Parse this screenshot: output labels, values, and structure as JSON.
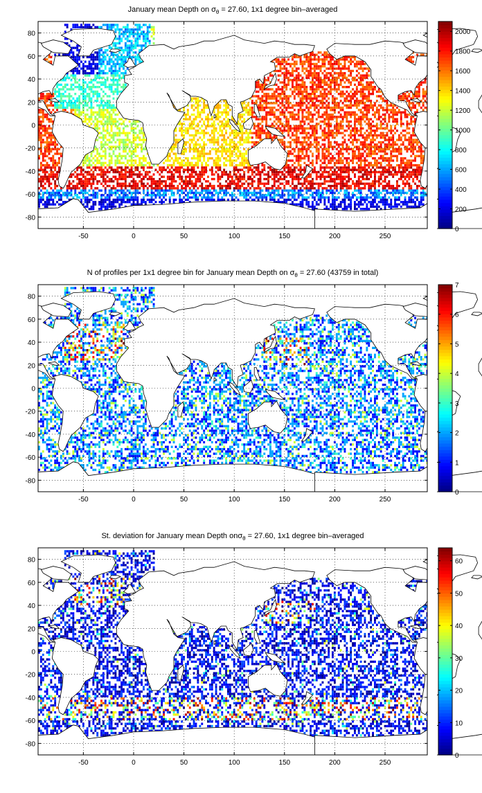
{
  "chart_data": [
    {
      "type": "heatmap",
      "title": "January mean Depth on σθ = 27.60, 1x1 degree bin–averaged",
      "title_parts": [
        "January mean Depth on σ",
        "θ",
        " = 27.60, 1x1 degree bin–averaged"
      ],
      "xlabel": "",
      "ylabel": "",
      "xlim": [
        -95,
        292
      ],
      "ylim": [
        -90,
        90
      ],
      "xticks": [
        -50,
        0,
        50,
        100,
        150,
        200,
        250
      ],
      "yticks": [
        80,
        60,
        40,
        20,
        0,
        -20,
        -40,
        -60,
        -80
      ],
      "grid": true,
      "colorbar": {
        "min": 0,
        "max": 2100,
        "ticks": [
          0,
          200,
          400,
          600,
          800,
          1000,
          1200,
          1400,
          1600,
          1800,
          2000
        ]
      },
      "colormap": "jet",
      "bands": [
        {
          "lat_range": [
            -75,
            -62
          ],
          "value": 120
        },
        {
          "lat_range": [
            -62,
            -55
          ],
          "value": 500
        },
        {
          "lat_range": [
            -55,
            -35
          ],
          "value": 1850
        },
        {
          "lat_range": [
            -35,
            -15
          ],
          "value": 1650
        },
        {
          "lat_range": [
            -15,
            15
          ],
          "value": 1550
        },
        {
          "lat_range": [
            15,
            45
          ],
          "value": 1600
        },
        {
          "lat_range": [
            45,
            60
          ],
          "value": 1750
        }
      ],
      "regional_values": [
        {
          "region": "Labrador / Irminger Sea",
          "value": 150
        },
        {
          "region": "North Atlantic subpolar",
          "value": 550
        },
        {
          "region": "North Atlantic subtropical",
          "value": 900
        },
        {
          "region": "Equatorial Atlantic",
          "value": 1150
        },
        {
          "region": "South Atlantic",
          "value": 1250
        },
        {
          "region": "Indian Ocean",
          "value": 1350
        },
        {
          "region": "Pacific",
          "value": 1700
        }
      ]
    },
    {
      "type": "heatmap",
      "title": "N of profiles per 1x1 degree bin for January mean Depth on σθ = 27.60 (43759 in total)",
      "title_parts": [
        "N of profiles per 1x1 degree bin for January mean Depth on σ",
        "θ",
        " = 27.60 (43759 in total)"
      ],
      "xlabel": "",
      "ylabel": "",
      "xlim": [
        -95,
        292
      ],
      "ylim": [
        -90,
        90
      ],
      "xticks": [
        -50,
        0,
        50,
        100,
        150,
        200,
        250
      ],
      "yticks": [
        80,
        60,
        40,
        20,
        0,
        -20,
        -40,
        -60,
        -80
      ],
      "grid": true,
      "colorbar": {
        "min": 0,
        "max": 7,
        "ticks": [
          0,
          1,
          2,
          3,
          4,
          5,
          6,
          7
        ]
      },
      "colormap": "jet",
      "total_profiles": 43759,
      "typical_value": 1,
      "hotspots": [
        {
          "region": "North Atlantic",
          "value": 5
        },
        {
          "region": "Kuroshio region",
          "value": 5
        },
        {
          "region": "Southern Ocean",
          "value": 3
        }
      ]
    },
    {
      "type": "heatmap",
      "title": "St. deviation for January mean Depth on σθ = 27.60, 1x1 degree bin–averaged",
      "title_parts": [
        "St. deviation for January mean Depth on",
        "σ",
        "θ",
        " = 27.60, 1x1 degree bin–averaged"
      ],
      "xlabel": "",
      "ylabel": "",
      "xlim": [
        -95,
        292
      ],
      "ylim": [
        -90,
        90
      ],
      "xticks": [
        -50,
        0,
        50,
        100,
        150,
        200,
        250
      ],
      "yticks": [
        80,
        60,
        40,
        20,
        0,
        -20,
        -40,
        -60,
        -80
      ],
      "grid": true,
      "colorbar": {
        "min": 0,
        "max": 64,
        "ticks": [
          0,
          10,
          20,
          30,
          40,
          50,
          60
        ]
      },
      "colormap": "jet",
      "typical_value": 8,
      "hotspots": [
        {
          "region": "Labrador / North Atlantic",
          "value": 55
        },
        {
          "region": "Kuroshio extension",
          "value": 40
        },
        {
          "region": "Antarctic Circumpolar Current",
          "value": 55
        }
      ]
    }
  ]
}
